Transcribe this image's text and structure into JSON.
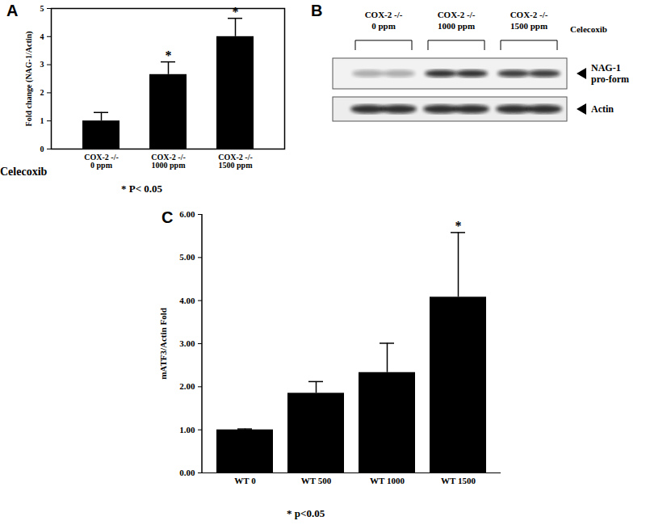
{
  "chart_data": [
    {
      "type": "bar",
      "panel": "A",
      "categories": [
        "COX-2 -/-\n0 ppm",
        "COX-2 -/-\n1000 ppm",
        "COX-2 -/-\n1500 ppm"
      ],
      "values": [
        1.0,
        2.65,
        4.0
      ],
      "errors": [
        0.3,
        0.45,
        0.65
      ],
      "significance": [
        null,
        "*",
        "*"
      ],
      "color": "#000000",
      "y_label": "Fold change (NAG-1/Actin)",
      "x_label": "Celecoxib",
      "note": "* P< 0.05",
      "ylim": [
        0,
        5
      ],
      "yticks": [
        0,
        1,
        2,
        3,
        4,
        5
      ]
    },
    {
      "type": "bar",
      "panel": "C",
      "categories": [
        "WT 0",
        "WT 500",
        "WT 1000",
        "WT 1500"
      ],
      "values": [
        1.0,
        1.85,
        2.33,
        4.08
      ],
      "errors": [
        0.02,
        0.27,
        0.68,
        1.5
      ],
      "significance": [
        null,
        null,
        null,
        "*"
      ],
      "color": "#000000",
      "y_label": "mATF3/Actin Fold",
      "note": "* p<0.05",
      "ylim": [
        0,
        6
      ],
      "yticks": [
        {
          "value": 0,
          "label": "0.00"
        },
        {
          "value": 1,
          "label": "1.00"
        },
        {
          "value": 2,
          "label": "2.00"
        },
        {
          "value": 3,
          "label": "3.00"
        },
        {
          "value": 4,
          "label": "4.00"
        },
        {
          "value": 5,
          "label": "5.00"
        },
        {
          "value": 6,
          "label": "6.00"
        }
      ]
    }
  ],
  "blot": {
    "panel": "B",
    "groups": [
      {
        "label": "COX-2 -/-",
        "dose": "0 ppm"
      },
      {
        "label": "COX-2 -/-",
        "dose": "1000 ppm"
      },
      {
        "label": "COX-2 -/-",
        "dose": "1500 ppm"
      }
    ],
    "treatment": "Celecoxib",
    "bands": [
      "NAG-1\npro-form",
      "Actin"
    ]
  }
}
